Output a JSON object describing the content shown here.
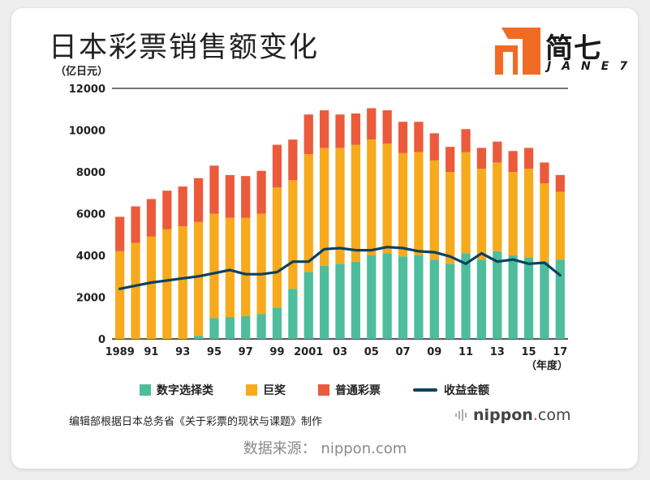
{
  "title": "日本彩票销售额变化",
  "logo": {
    "cn": "简七",
    "en": "JANE7"
  },
  "legend": {
    "items": [
      {
        "label": "数字选择类",
        "color": "#4dbd9c",
        "kind": "bar"
      },
      {
        "label": "巨奖",
        "color": "#f6aa1c",
        "kind": "bar"
      },
      {
        "label": "普通彩票",
        "color": "#ec5a3c",
        "kind": "bar"
      },
      {
        "label": "收益金额",
        "color": "#0c4160",
        "kind": "line"
      }
    ]
  },
  "note": "编辑部根据日本总务省《关于彩票的现状与课题》制作",
  "brand": {
    "name": "nippon",
    "dot": ".",
    "tld": "com"
  },
  "source": "数据来源： nippon.com",
  "chart_data": {
    "type": "bar",
    "stacked": true,
    "ylabel": "（亿日元）",
    "xlabel": "（年度）",
    "ylim": [
      0,
      12000
    ],
    "yticks": [
      0,
      2000,
      4000,
      6000,
      8000,
      10000,
      12000
    ],
    "grid": "top line only",
    "legend_position": "bottom",
    "categories": [
      "1989",
      "1990",
      "1991",
      "1992",
      "1993",
      "1994",
      "1995",
      "1996",
      "1997",
      "1998",
      "1999",
      "2000",
      "2001",
      "2002",
      "2003",
      "2004",
      "2005",
      "2006",
      "2007",
      "2008",
      "2009",
      "2010",
      "2011",
      "2012",
      "2013",
      "2014",
      "2015",
      "2016",
      "2017"
    ],
    "tick_labels": [
      "1989",
      "",
      "91",
      "",
      "93",
      "",
      "95",
      "",
      "97",
      "",
      "99",
      "",
      "2001",
      "",
      "03",
      "",
      "05",
      "",
      "07",
      "",
      "09",
      "",
      "11",
      "",
      "13",
      "",
      "15",
      "",
      "17"
    ],
    "series": [
      {
        "name": "数字选择类",
        "color": "#4dbd9c",
        "values": [
          0,
          0,
          0,
          0,
          0,
          150,
          1000,
          1050,
          1100,
          1200,
          1500,
          2400,
          3200,
          3500,
          3600,
          3700,
          4000,
          4100,
          3950,
          4000,
          3800,
          3600,
          4100,
          3800,
          4200,
          4000,
          3900,
          3700,
          3800
        ]
      },
      {
        "name": "巨奖",
        "color": "#f6aa1c",
        "values": [
          4200,
          4600,
          4900,
          5250,
          5400,
          5450,
          5000,
          4750,
          4700,
          4800,
          5750,
          5200,
          5650,
          5650,
          5550,
          5600,
          5550,
          5250,
          4950,
          4950,
          4750,
          4400,
          4850,
          4350,
          4250,
          4000,
          4250,
          3750,
          3250
        ]
      },
      {
        "name": "普通彩票",
        "color": "#ec5a3c",
        "values": [
          1650,
          1750,
          1800,
          1850,
          1900,
          2100,
          2300,
          2050,
          2000,
          2050,
          2050,
          1950,
          1900,
          1800,
          1600,
          1500,
          1500,
          1600,
          1500,
          1450,
          1300,
          1200,
          1100,
          1000,
          1000,
          1000,
          1000,
          1000,
          800
        ]
      },
      {
        "name": "收益金额",
        "type": "line",
        "color": "#0c4160",
        "values": [
          2400,
          2550,
          2700,
          2800,
          2900,
          3000,
          3150,
          3300,
          3100,
          3100,
          3200,
          3700,
          3700,
          4300,
          4350,
          4250,
          4250,
          4400,
          4350,
          4200,
          4150,
          3950,
          3600,
          4100,
          3700,
          3800,
          3600,
          3650,
          3050
        ]
      }
    ]
  }
}
